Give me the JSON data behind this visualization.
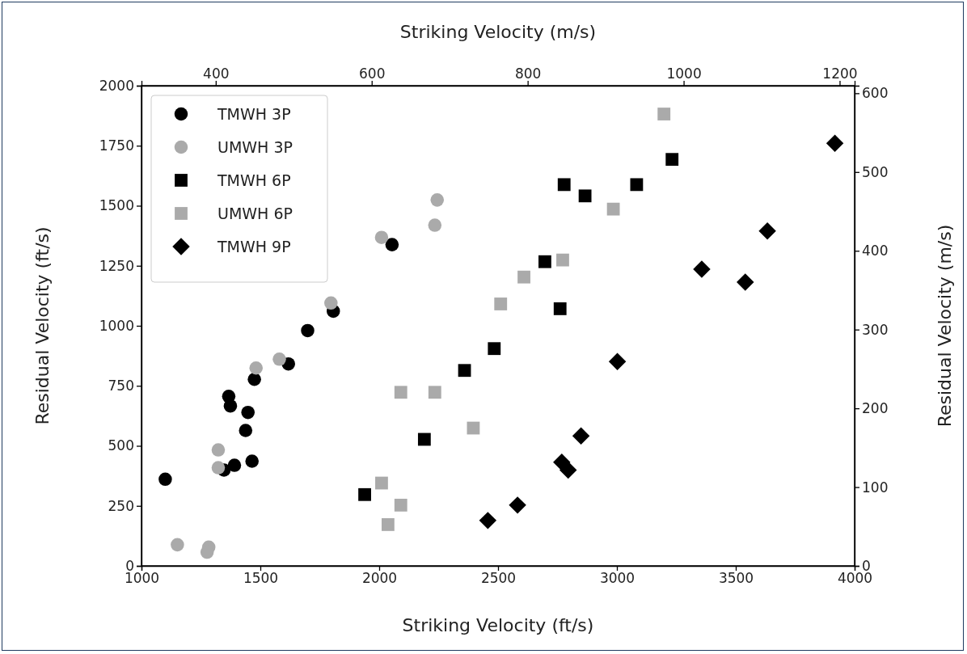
{
  "chart_data": {
    "type": "scatter",
    "xlabel": "Striking Velocity (ft/s)",
    "ylabel": "Residual Velocity (ft/s)",
    "x2label": "Striking Velocity (m/s)",
    "y2label": "Residual Velocity (m/s)",
    "xlim": [
      1000,
      4000
    ],
    "xticks": [
      1000,
      1500,
      2000,
      2500,
      3000,
      3500,
      4000
    ],
    "ylim": [
      0,
      2000
    ],
    "yticks": [
      0,
      250,
      500,
      750,
      1000,
      1250,
      1500,
      1750,
      2000
    ],
    "x2lim": [
      304.8,
      1219.2
    ],
    "x2ticks": [
      400,
      600,
      800,
      1000,
      1200
    ],
    "y2lim": [
      0,
      609.6
    ],
    "y2ticks": [
      0,
      100,
      200,
      300,
      400,
      500,
      600
    ],
    "legend": "top left",
    "grid": false,
    "series": [
      {
        "name": "TMWH 3P",
        "color": "#000000",
        "marker": "circle",
        "x": [
          2054,
          1699,
          1618,
          1475,
          1367,
          1374,
          1448,
          1438,
          1465,
          1391,
          1347,
          1100,
          1807
        ],
        "values": [
          1338,
          980,
          841,
          777,
          706,
          666,
          639,
          564,
          436,
          419,
          399,
          361,
          1061
        ]
      },
      {
        "name": "UMWH 3P",
        "color": "#aaaaaa",
        "marker": "circle",
        "x": [
          2244,
          2234,
          2010,
          1797,
          1580,
          1482,
          1323,
          1323,
          1151,
          1283,
          1276
        ],
        "values": [
          1524,
          1419,
          1368,
          1095,
          861,
          824,
          483,
          409,
          88,
          78,
          57
        ]
      },
      {
        "name": "TMWH 6P",
        "color": "#000000",
        "marker": "square",
        "x": [
          3232,
          2778,
          2866,
          3083,
          2697,
          2761,
          2484,
          2359,
          2190,
          1939
        ],
        "values": [
          1693,
          1588,
          1541,
          1588,
          1267,
          1071,
          905,
          814,
          527,
          297
        ]
      },
      {
        "name": "UMWH 6P",
        "color": "#aaaaaa",
        "marker": "square",
        "x": [
          3198,
          2985,
          2772,
          2609,
          2511,
          2091,
          2234,
          2396,
          2010,
          2091,
          2037
        ],
        "values": [
          1882,
          1486,
          1274,
          1203,
          1091,
          723,
          723,
          574,
          345,
          253,
          172
        ]
      },
      {
        "name": "TMWH 9P",
        "color": "#000000",
        "marker": "diamond",
        "x": [
          3917,
          3633,
          3357,
          3540,
          3002,
          2849,
          2795,
          2768,
          2582,
          2457
        ],
        "values": [
          1760,
          1395,
          1236,
          1182,
          851,
          541,
          399,
          432,
          253,
          189
        ]
      }
    ]
  }
}
